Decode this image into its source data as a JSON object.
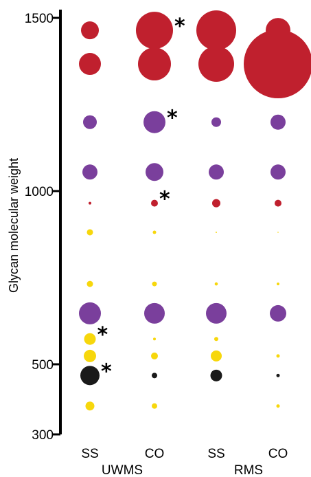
{
  "chart_data": {
    "type": "scatter",
    "encoding": "bubble",
    "ylabel": "Glycan molecular weight",
    "ylim": [
      300,
      1500
    ],
    "yticks": [
      {
        "value": 1500,
        "label": "1500"
      },
      {
        "value": 1000,
        "label": "1000"
      },
      {
        "value": 500,
        "label": "500"
      },
      {
        "value": 300,
        "label": "300"
      }
    ],
    "categories": [
      "SS",
      "CO",
      "SS",
      "CO"
    ],
    "groups": [
      {
        "label": "UWMS",
        "categories": [
          0,
          1
        ]
      },
      {
        "label": "RMS",
        "categories": [
          2,
          3
        ]
      }
    ],
    "grid": false,
    "colors": {
      "red": "#c0202e",
      "purple": "#7a3f9c",
      "yellow": "#f7d70c",
      "black": "#1a1a1a"
    },
    "series": [
      {
        "color": "red",
        "y": 1464,
        "values": [
          13,
          27,
          29,
          18
        ],
        "significant": [
          false,
          true,
          false,
          false
        ]
      },
      {
        "color": "red",
        "y": 1367,
        "values": [
          16,
          24,
          26,
          50
        ],
        "significant": [
          false,
          false,
          false,
          false
        ]
      },
      {
        "color": "purple",
        "y": 1199,
        "values": [
          10,
          16,
          7,
          11
        ],
        "significant": [
          false,
          true,
          false,
          false
        ]
      },
      {
        "color": "purple",
        "y": 1055,
        "values": [
          11,
          13,
          11,
          11
        ],
        "significant": [
          false,
          false,
          false,
          false
        ]
      },
      {
        "color": "red",
        "y": 965,
        "values": [
          2,
          5,
          6,
          5
        ],
        "significant": [
          false,
          true,
          false,
          false
        ]
      },
      {
        "color": "yellow",
        "y": 881,
        "values": [
          4.5,
          2.5,
          1,
          0.8
        ],
        "significant": [
          false,
          false,
          false,
          false
        ]
      },
      {
        "color": "yellow",
        "y": 732,
        "values": [
          4.5,
          3.5,
          2.3,
          2
        ],
        "significant": [
          false,
          false,
          false,
          false
        ]
      },
      {
        "color": "purple",
        "y": 647,
        "values": [
          16,
          15,
          15,
          12
        ],
        "significant": [
          false,
          false,
          false,
          false
        ]
      },
      {
        "color": "yellow",
        "y": 573,
        "values": [
          8.5,
          2,
          3,
          0
        ],
        "significant": [
          true,
          false,
          false,
          false
        ]
      },
      {
        "color": "yellow",
        "y": 524,
        "values": [
          9,
          5,
          8,
          2.5
        ],
        "significant": [
          false,
          false,
          false,
          false
        ]
      },
      {
        "color": "black",
        "y": 468,
        "values": [
          14,
          4,
          8.5,
          2.5
        ],
        "significant": [
          true,
          false,
          false,
          false
        ]
      },
      {
        "color": "yellow",
        "y": 381,
        "values": [
          6.5,
          4,
          0,
          2.5
        ],
        "significant": [
          false,
          false,
          false,
          false
        ]
      }
    ],
    "significance_marker": "*"
  }
}
